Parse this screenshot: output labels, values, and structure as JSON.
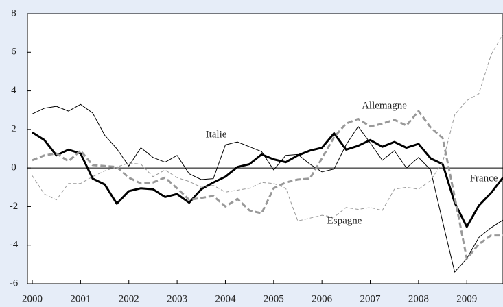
{
  "chart_data": {
    "type": "line",
    "x": [
      2000,
      2000.25,
      2000.5,
      2000.75,
      2001,
      2001.25,
      2001.5,
      2001.75,
      2002,
      2002.25,
      2002.5,
      2002.75,
      2003,
      2003.25,
      2003.5,
      2003.75,
      2004,
      2004.25,
      2004.5,
      2004.75,
      2005,
      2005.25,
      2005.5,
      2005.75,
      2006,
      2006.25,
      2006.5,
      2006.75,
      2007,
      2007.25,
      2007.5,
      2007.75,
      2008,
      2008.25,
      2008.5,
      2008.75,
      2009,
      2009.25,
      2009.5,
      2009.75
    ],
    "xlim": [
      1999.9,
      2009.75
    ],
    "xticks": [
      2000,
      2001,
      2002,
      2003,
      2004,
      2005,
      2006,
      2007,
      2008,
      2009
    ],
    "ylim": [
      -6,
      8
    ],
    "yticks": [
      -6,
      -4,
      -2,
      0,
      2,
      4,
      6,
      8
    ],
    "series": [
      {
        "name": "Italie",
        "color": "#000000",
        "width": 1,
        "dashed": false,
        "values": [
          2.8,
          3.1,
          3.2,
          2.95,
          3.3,
          2.85,
          1.7,
          1.0,
          0.1,
          1.05,
          0.55,
          0.3,
          0.65,
          -0.3,
          -0.6,
          -0.55,
          1.2,
          1.35,
          1.1,
          0.85,
          -0.1,
          0.65,
          0.7,
          0.2,
          -0.2,
          -0.05,
          1.2,
          2.15,
          1.3,
          0.4,
          0.9,
          0,
          0.55,
          -0.1,
          -2.8,
          -5.4,
          -4.7,
          -3.6,
          -3.1,
          -2.7
        ]
      },
      {
        "name": "France",
        "color": "#000000",
        "width": 3,
        "dashed": false,
        "values": [
          1.85,
          1.45,
          0.65,
          0.95,
          0.75,
          -0.55,
          -0.85,
          -1.85,
          -1.2,
          -1.05,
          -1.1,
          -1.5,
          -1.35,
          -1.8,
          -1.1,
          -0.75,
          -0.45,
          0.05,
          0.2,
          0.7,
          0.45,
          0.3,
          0.65,
          0.9,
          1.05,
          1.8,
          0.95,
          1.15,
          1.45,
          1.1,
          1.35,
          1.05,
          1.25,
          0.5,
          0.2,
          -1.8,
          -3.05,
          -1.95,
          -1.3,
          -0.5
        ]
      },
      {
        "name": "Allemagne",
        "color": "#999999",
        "width": 3,
        "dashed": true,
        "values": [
          0.4,
          0.65,
          0.75,
          0.35,
          0.9,
          0.15,
          0.1,
          0.05,
          -0.5,
          -0.8,
          -0.75,
          -0.5,
          -1.05,
          -1.65,
          -1.55,
          -1.45,
          -2.0,
          -1.6,
          -2.2,
          -2.35,
          -1.05,
          -0.75,
          -0.6,
          -0.55,
          0.5,
          1.6,
          2.3,
          2.55,
          2.15,
          2.3,
          2.5,
          2.2,
          2.95,
          2.1,
          1.55,
          -1.5,
          -4.7,
          -3.95,
          -3.5,
          -3.5
        ]
      },
      {
        "name": "Espagne",
        "color": "#999999",
        "width": 1,
        "dashed": true,
        "values": [
          -0.4,
          -1.35,
          -1.65,
          -0.8,
          -0.8,
          -0.45,
          -0.15,
          0.05,
          0.25,
          0.2,
          -0.45,
          -0.1,
          -0.5,
          -0.7,
          -1.0,
          -0.9,
          -1.25,
          -1.15,
          -1.05,
          -0.75,
          -0.8,
          -1.05,
          -2.75,
          -2.6,
          -2.45,
          -2.55,
          -2.05,
          -2.15,
          -2.05,
          -2.2,
          -1.1,
          -1.0,
          -1.1,
          -0.65,
          0.3,
          2.75,
          3.5,
          3.85,
          5.85,
          6.95
        ]
      }
    ]
  }
}
